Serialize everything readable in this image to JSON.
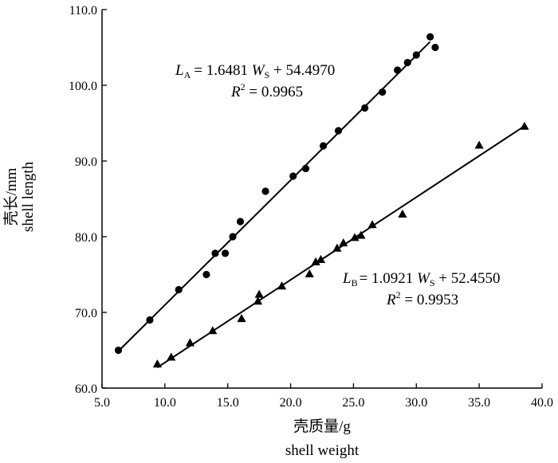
{
  "chart_data": {
    "type": "scatter",
    "xlabel": [
      "壳质量/g",
      "shell weight"
    ],
    "ylabel": [
      "壳长/mm",
      "shell length"
    ],
    "xlim": [
      5.0,
      40.0
    ],
    "ylim": [
      60.0,
      110.0
    ],
    "xticks": [
      "5.0",
      "10.0",
      "15.0",
      "20.0",
      "25.0",
      "30.0",
      "35.0",
      "40.0"
    ],
    "yticks": [
      "60.0",
      "70.0",
      "80.0",
      "90.0",
      "100.0",
      "110.0"
    ],
    "grid": false,
    "series": [
      {
        "marker": "circle",
        "color": "#000000",
        "points": [
          [
            6.3,
            65.0
          ],
          [
            8.8,
            69.0
          ],
          [
            11.1,
            73.0
          ],
          [
            13.3,
            75.0
          ],
          [
            14.0,
            77.8
          ],
          [
            14.8,
            77.8
          ],
          [
            15.4,
            80.0
          ],
          [
            16.0,
            82.0
          ],
          [
            18.0,
            86.0
          ],
          [
            20.2,
            88.0
          ],
          [
            21.2,
            89.0
          ],
          [
            22.6,
            92.0
          ],
          [
            23.8,
            94.0
          ],
          [
            25.9,
            97.0
          ],
          [
            27.3,
            99.1
          ],
          [
            28.5,
            102.0
          ],
          [
            29.3,
            103.0
          ],
          [
            30.0,
            104.0
          ],
          [
            31.1,
            106.4
          ],
          [
            31.5,
            105.0
          ]
        ],
        "fit": {
          "slope": 1.6481,
          "intercept": 54.497,
          "x_range": [
            6.3,
            31.1
          ],
          "equation": {
            "lhs": "L",
            "lhs_sub": "A",
            "rhs_coef": "= 1.6481 ",
            "var": "W",
            "var_sub": "S",
            "rhs_const": " + 54.4970"
          },
          "r2": {
            "label": "R",
            "sup": "2",
            "value": " = 0.9965"
          }
        }
      },
      {
        "marker": "triangle",
        "color": "#000000",
        "points": [
          [
            9.4,
            63.2
          ],
          [
            10.5,
            64.1
          ],
          [
            12.0,
            66.0
          ],
          [
            13.8,
            67.6
          ],
          [
            16.1,
            69.2
          ],
          [
            17.4,
            71.5
          ],
          [
            17.5,
            72.4
          ],
          [
            19.3,
            73.5
          ],
          [
            21.5,
            75.1
          ],
          [
            22.0,
            76.7
          ],
          [
            22.4,
            77.0
          ],
          [
            23.7,
            78.5
          ],
          [
            24.2,
            79.2
          ],
          [
            25.1,
            79.9
          ],
          [
            25.6,
            80.2
          ],
          [
            26.5,
            81.6
          ],
          [
            28.9,
            83.0
          ],
          [
            35.0,
            92.1
          ],
          [
            38.6,
            94.6
          ]
        ],
        "fit": {
          "slope": 1.0921,
          "intercept": 52.455,
          "x_range": [
            9.4,
            38.6
          ],
          "equation": {
            "lhs": "L",
            "lhs_sub": "B",
            "rhs_coef": "= 1.0921 ",
            "var": "W",
            "var_sub": "S",
            "rhs_const": " + 52.4550"
          },
          "r2": {
            "label": "R",
            "sup": "2",
            "value": " = 0.9953"
          }
        }
      }
    ]
  }
}
